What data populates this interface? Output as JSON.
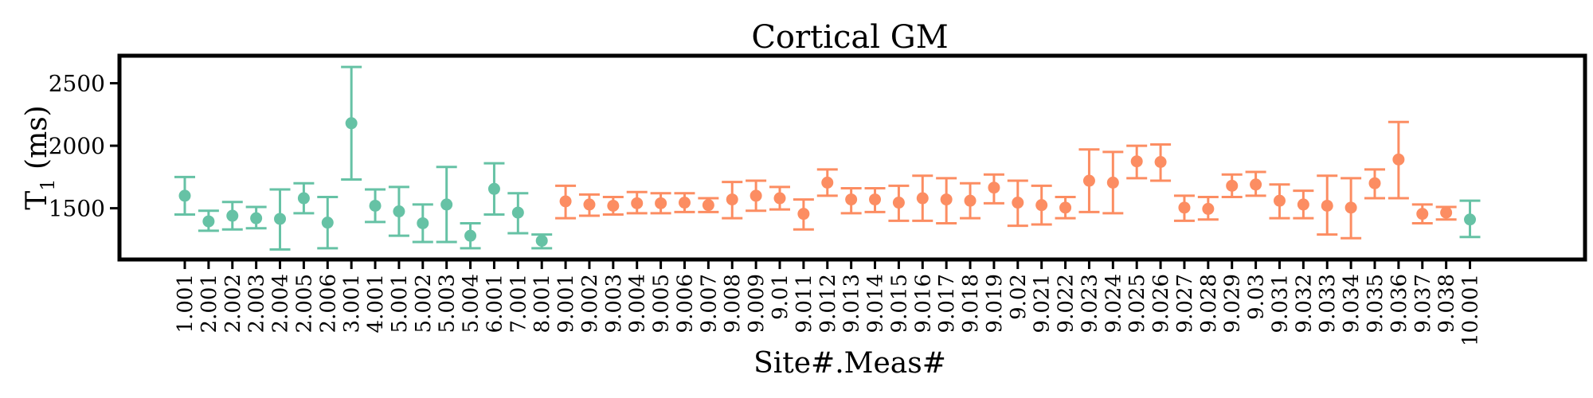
{
  "chart_data": {
    "type": "scatter",
    "title": "Cortical GM",
    "xlabel": "Site#.Meas#",
    "ylabel": "T",
    "ylabel_subscript": "1",
    "ylabel_suffix": " (ms)",
    "ylim": [
      1090,
      2720
    ],
    "yticks": [
      1500,
      2000,
      2500
    ],
    "grid": false,
    "legend": "none",
    "colors": {
      "group_a": "#66c2a5",
      "group_b": "#fc8d62",
      "axes": "#000000"
    },
    "categories": [
      "1.001",
      "2.001",
      "2.002",
      "2.003",
      "2.004",
      "2.005",
      "2.006",
      "3.001",
      "4.001",
      "5.001",
      "5.002",
      "5.003",
      "5.004",
      "6.001",
      "7.001",
      "8.001",
      "9.001",
      "9.002",
      "9.003",
      "9.004",
      "9.005",
      "9.006",
      "9.007",
      "9.008",
      "9.009",
      "9.01",
      "9.011",
      "9.012",
      "9.013",
      "9.014",
      "9.015",
      "9.016",
      "9.017",
      "9.018",
      "9.019",
      "9.02",
      "9.021",
      "9.022",
      "9.023",
      "9.024",
      "9.025",
      "9.026",
      "9.027",
      "9.028",
      "9.029",
      "9.03",
      "9.031",
      "9.032",
      "9.033",
      "9.034",
      "9.035",
      "9.036",
      "9.037",
      "9.038",
      "10.001"
    ],
    "values": [
      1600,
      1395,
      1440,
      1420,
      1415,
      1580,
      1385,
      2180,
      1520,
      1475,
      1380,
      1530,
      1280,
      1655,
      1465,
      1240,
      1555,
      1530,
      1520,
      1540,
      1540,
      1545,
      1525,
      1570,
      1600,
      1580,
      1455,
      1705,
      1570,
      1570,
      1545,
      1580,
      1570,
      1560,
      1665,
      1545,
      1525,
      1505,
      1720,
      1705,
      1875,
      1870,
      1505,
      1495,
      1680,
      1690,
      1560,
      1530,
      1520,
      1505,
      1700,
      1890,
      1455,
      1465,
      1410
    ],
    "error_low": [
      1450,
      1320,
      1330,
      1340,
      1170,
      1460,
      1180,
      1730,
      1390,
      1280,
      1230,
      1230,
      1180,
      1450,
      1300,
      1180,
      1420,
      1440,
      1450,
      1460,
      1460,
      1470,
      1470,
      1420,
      1480,
      1490,
      1330,
      1600,
      1460,
      1470,
      1400,
      1400,
      1380,
      1420,
      1540,
      1360,
      1370,
      1420,
      1470,
      1460,
      1740,
      1720,
      1400,
      1410,
      1590,
      1600,
      1420,
      1420,
      1290,
      1260,
      1580,
      1580,
      1380,
      1410,
      1270
    ],
    "error_high": [
      1750,
      1480,
      1550,
      1510,
      1650,
      1700,
      1590,
      2630,
      1650,
      1670,
      1530,
      1830,
      1380,
      1860,
      1620,
      1290,
      1680,
      1610,
      1590,
      1630,
      1620,
      1620,
      1580,
      1710,
      1720,
      1670,
      1570,
      1810,
      1660,
      1660,
      1680,
      1760,
      1740,
      1700,
      1770,
      1720,
      1680,
      1590,
      1970,
      1950,
      2000,
      2010,
      1600,
      1590,
      1770,
      1790,
      1690,
      1640,
      1760,
      1740,
      1810,
      2190,
      1530,
      1510,
      1560
    ],
    "group": [
      "a",
      "a",
      "a",
      "a",
      "a",
      "a",
      "a",
      "a",
      "a",
      "a",
      "a",
      "a",
      "a",
      "a",
      "a",
      "a",
      "b",
      "b",
      "b",
      "b",
      "b",
      "b",
      "b",
      "b",
      "b",
      "b",
      "b",
      "b",
      "b",
      "b",
      "b",
      "b",
      "b",
      "b",
      "b",
      "b",
      "b",
      "b",
      "b",
      "b",
      "b",
      "b",
      "b",
      "b",
      "b",
      "b",
      "b",
      "b",
      "b",
      "b",
      "b",
      "b",
      "b",
      "b",
      "a"
    ]
  }
}
